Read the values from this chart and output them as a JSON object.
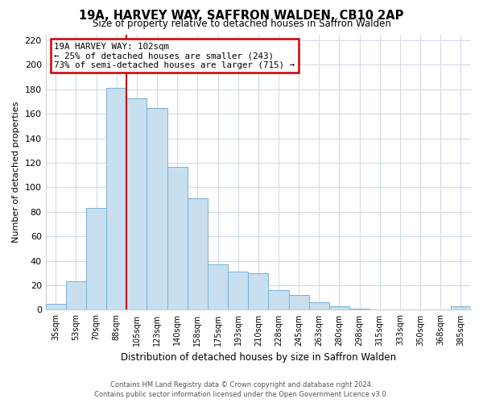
{
  "title": "19A, HARVEY WAY, SAFFRON WALDEN, CB10 2AP",
  "subtitle": "Size of property relative to detached houses in Saffron Walden",
  "xlabel": "Distribution of detached houses by size in Saffron Walden",
  "ylabel": "Number of detached properties",
  "bar_labels": [
    "35sqm",
    "53sqm",
    "70sqm",
    "88sqm",
    "105sqm",
    "123sqm",
    "140sqm",
    "158sqm",
    "175sqm",
    "193sqm",
    "210sqm",
    "228sqm",
    "245sqm",
    "263sqm",
    "280sqm",
    "298sqm",
    "315sqm",
    "333sqm",
    "350sqm",
    "368sqm",
    "385sqm"
  ],
  "bar_values": [
    5,
    23,
    83,
    181,
    173,
    165,
    117,
    91,
    37,
    31,
    30,
    16,
    12,
    6,
    3,
    1,
    0,
    0,
    0,
    0,
    3
  ],
  "bar_color": "#c8dff0",
  "bar_edge_color": "#7ab0d4",
  "vline_color": "#cc0000",
  "annotation_line1": "19A HARVEY WAY: 102sqm",
  "annotation_line2": "← 25% of detached houses are smaller (243)",
  "annotation_line3": "73% of semi-detached houses are larger (715) →",
  "annotation_box_color": "white",
  "annotation_box_edge_color": "#cc0000",
  "ylim": [
    0,
    225
  ],
  "yticks": [
    0,
    20,
    40,
    60,
    80,
    100,
    120,
    140,
    160,
    180,
    200,
    220
  ],
  "footer_line1": "Contains HM Land Registry data © Crown copyright and database right 2024.",
  "footer_line2": "Contains public sector information licensed under the Open Government Licence v3.0.",
  "bg_color": "#ffffff",
  "grid_color": "#d0dce8"
}
